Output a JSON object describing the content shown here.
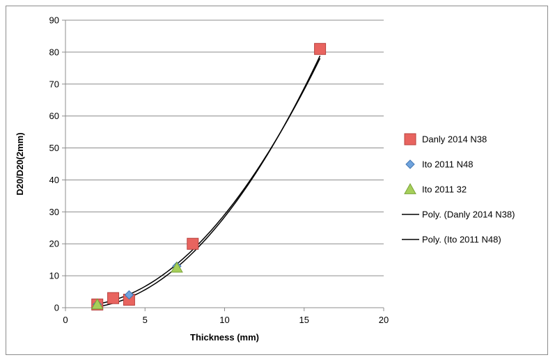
{
  "chart_data": {
    "type": "scatter",
    "title": "",
    "xlabel": "Thickness (mm)",
    "ylabel": "D20/D20(2mm)",
    "xlim": [
      0,
      20
    ],
    "ylim": [
      0,
      90
    ],
    "xticks": [
      0,
      5,
      10,
      15,
      20
    ],
    "yticks": [
      0,
      10,
      20,
      30,
      40,
      50,
      60,
      70,
      80,
      90
    ],
    "grid": "horizontal",
    "legend_position": "right",
    "series": [
      {
        "name": "Danly 2014 N38",
        "marker": "square",
        "color": "#e8645f",
        "x": [
          2,
          3,
          4,
          8,
          16
        ],
        "y": [
          1,
          3,
          2.5,
          20,
          81
        ]
      },
      {
        "name": "Ito 2011 N48",
        "marker": "diamond",
        "color": "#6fa3dd",
        "x": [
          2,
          4,
          7
        ],
        "y": [
          1,
          4,
          13
        ]
      },
      {
        "name": "Ito 2011 32",
        "marker": "triangle",
        "color": "#a6cf5a",
        "x": [
          2,
          7
        ],
        "y": [
          1,
          12.5
        ]
      }
    ],
    "trendlines": [
      {
        "name": "Poly. (Danly 2014 N38)",
        "color": "#000000",
        "coefficients": [
          0.35,
          -0.69,
          0.31
        ],
        "xrange": [
          2,
          16
        ]
      },
      {
        "name": "Poly. (Ito 2011 N48)",
        "color": "#000000",
        "coefficients": [
          0.333,
          -0.5,
          0.833
        ],
        "xrange": [
          2,
          16
        ]
      }
    ]
  }
}
